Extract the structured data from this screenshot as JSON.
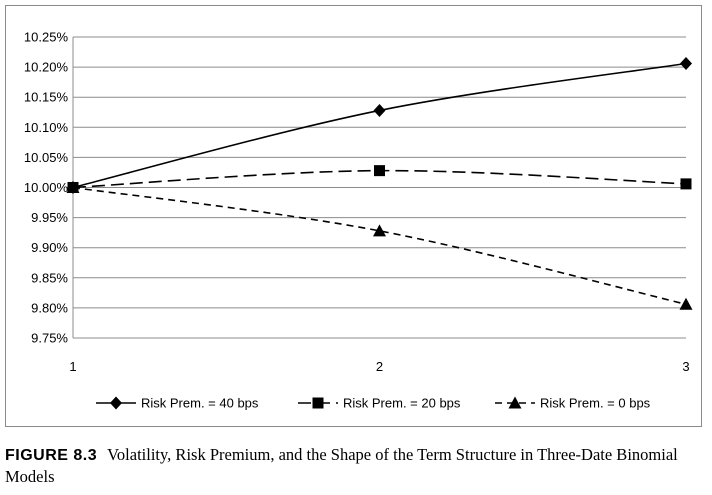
{
  "chart_data": {
    "type": "line",
    "x": [
      1,
      2,
      3
    ],
    "xticks": [
      "1",
      "2",
      "3"
    ],
    "ylim": [
      9.75,
      10.25
    ],
    "yticks": [
      "9.75%",
      "9.80%",
      "9.85%",
      "9.90%",
      "9.95%",
      "10.00%",
      "10.05%",
      "10.10%",
      "10.15%",
      "10.20%",
      "10.25%"
    ],
    "grid": true,
    "legend_position": "bottom",
    "series": [
      {
        "name": "Risk Prem. = 40 bps",
        "values": [
          10.0,
          10.128,
          10.206
        ],
        "marker": "diamond",
        "dash": "solid"
      },
      {
        "name": "Risk Prem. = 20 bps",
        "values": [
          10.0,
          10.028,
          10.006
        ],
        "marker": "square",
        "dash": "long-dash"
      },
      {
        "name": "Risk Prem. = 0 bps",
        "values": [
          10.0,
          9.928,
          9.806
        ],
        "marker": "triangle",
        "dash": "short-dash"
      }
    ]
  },
  "caption": {
    "label": "FIGURE 8.3",
    "text": "Volatility, Risk Premium, and the Shape of the Term Structure in Three-Date Binomial Models"
  }
}
